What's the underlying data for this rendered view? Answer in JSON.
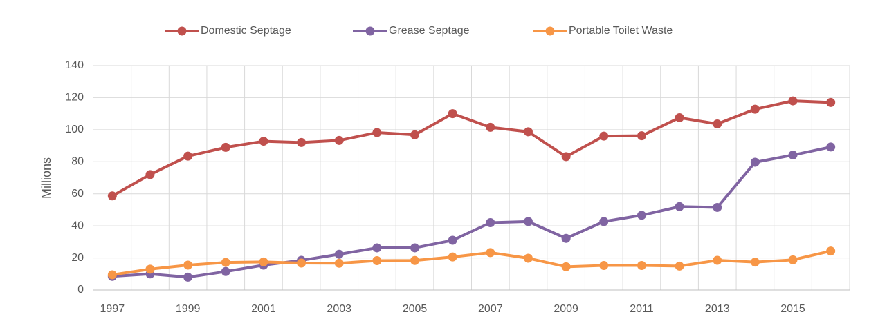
{
  "chart_data": {
    "type": "line",
    "categories": [
      "1997",
      null,
      "1999",
      null,
      "2001",
      null,
      "2003",
      null,
      "2005",
      null,
      "2007",
      null,
      "2009",
      null,
      "2011",
      null,
      "2013",
      null,
      "2015",
      null
    ],
    "y_label": "Millions",
    "series": [
      {
        "name": "Domestic Septage",
        "color": "#c0504d",
        "values": [
          58.7,
          72,
          83.5,
          89,
          92.8,
          92,
          93.3,
          98.2,
          96.8,
          110,
          101.5,
          98.7,
          83.2,
          96,
          96.2,
          107.5,
          103.6,
          112.8,
          118,
          117
        ]
      },
      {
        "name": "Grease Septage",
        "color": "#8064a2",
        "values": [
          8.5,
          10,
          8,
          11.5,
          15.5,
          18.5,
          22.3,
          26.3,
          26.3,
          31,
          42,
          42.7,
          32.2,
          42.7,
          46.6,
          52,
          51.5,
          79.7,
          84.2,
          89.2
        ]
      },
      {
        "name": "Portable Toilet Waste",
        "color": "#f79646",
        "values": [
          9.5,
          13,
          15.5,
          17.2,
          17.5,
          16.8,
          16.7,
          18.3,
          18.4,
          20.6,
          23.3,
          19.8,
          14.5,
          15.3,
          15.3,
          14.9,
          18.5,
          17.4,
          18.8,
          24.3
        ]
      }
    ],
    "ylim": [
      0,
      140
    ],
    "yticks": [
      0,
      20,
      40,
      60,
      80,
      100,
      120,
      140
    ],
    "grid": true,
    "legend": "top"
  }
}
